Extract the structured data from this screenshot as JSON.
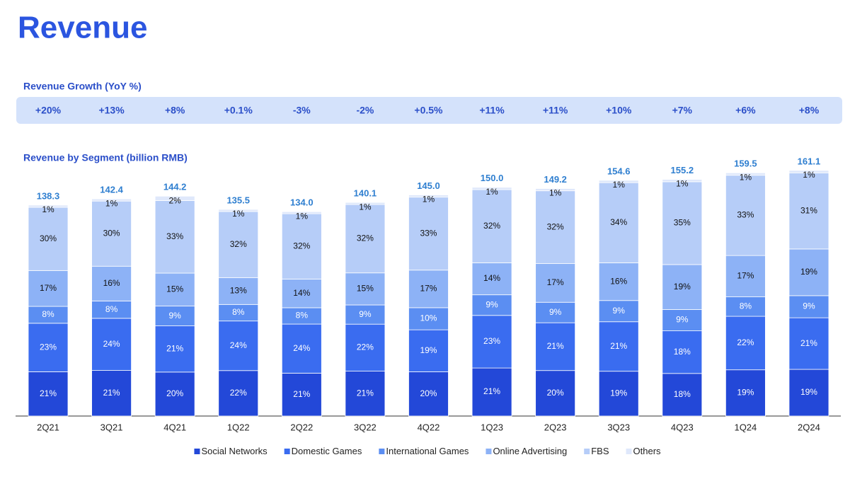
{
  "chart_data": {
    "type": "bar",
    "title": "Revenue",
    "growth": {
      "title": "Revenue Growth (YoY %)",
      "values": [
        20,
        13,
        8,
        0.1,
        -3,
        -2,
        0.5,
        11,
        11,
        10,
        7,
        6,
        8
      ],
      "value_labels": [
        "+20%",
        "+13%",
        "+8%",
        "+0.1%",
        "-3%",
        "-2%",
        "+0.5%",
        "+11%",
        "+11%",
        "+10%",
        "+7%",
        "+6%",
        "+8%"
      ]
    },
    "subtitle": "Revenue by Segment (billion RMB)",
    "categories": [
      "2Q21",
      "3Q21",
      "4Q21",
      "1Q22",
      "2Q22",
      "3Q22",
      "4Q22",
      "1Q23",
      "2Q23",
      "3Q23",
      "4Q23",
      "1Q24",
      "2Q24"
    ],
    "totals": {
      "values": [
        138.3,
        142.4,
        144.2,
        135.5,
        134.0,
        140.1,
        145.0,
        150.0,
        149.2,
        154.6,
        155.2,
        159.5,
        161.1
      ],
      "value_labels": [
        "138.3",
        "142.4",
        "144.2",
        "135.5",
        "134.0",
        "140.1",
        "145.0",
        "150.0",
        "149.2",
        "154.6",
        "155.2",
        "159.5",
        "161.1"
      ]
    },
    "series": [
      {
        "name": "Social Networks",
        "color": "#2348d8",
        "values": [
          21,
          21,
          20,
          22,
          21,
          21,
          20,
          21,
          20,
          19,
          18,
          19,
          19
        ],
        "value_labels": [
          "21%",
          "21%",
          "20%",
          "22%",
          "21%",
          "21%",
          "20%",
          "21%",
          "20%",
          "19%",
          "18%",
          "19%",
          "19%"
        ]
      },
      {
        "name": "Domestic Games",
        "color": "#3a6cf0",
        "values": [
          23,
          24,
          21,
          24,
          24,
          22,
          19,
          23,
          21,
          21,
          18,
          22,
          21
        ],
        "value_labels": [
          "23%",
          "24%",
          "21%",
          "24%",
          "24%",
          "22%",
          "19%",
          "23%",
          "21%",
          "21%",
          "18%",
          "22%",
          "21%"
        ]
      },
      {
        "name": "International Games",
        "color": "#5b8ef2",
        "values": [
          8,
          8,
          9,
          8,
          8,
          9,
          10,
          9,
          9,
          9,
          9,
          8,
          9
        ],
        "value_labels": [
          "8%",
          "8%",
          "9%",
          "8%",
          "8%",
          "9%",
          "10%",
          "9%",
          "9%",
          "9%",
          "9%",
          "8%",
          "9%"
        ]
      },
      {
        "name": "Online Advertising",
        "color": "#8db2f6",
        "values": [
          17,
          16,
          15,
          13,
          14,
          15,
          17,
          14,
          17,
          16,
          19,
          17,
          19
        ],
        "value_labels": [
          "17%",
          "16%",
          "15%",
          "13%",
          "14%",
          "15%",
          "17%",
          "14%",
          "17%",
          "16%",
          "19%",
          "17%",
          "19%"
        ]
      },
      {
        "name": "FBS",
        "color": "#b6cdf8",
        "values": [
          30,
          30,
          33,
          32,
          32,
          32,
          33,
          32,
          32,
          34,
          35,
          33,
          31
        ],
        "value_labels": [
          "30%",
          "30%",
          "33%",
          "32%",
          "32%",
          "32%",
          "33%",
          "32%",
          "32%",
          "34%",
          "35%",
          "33%",
          "31%"
        ]
      },
      {
        "name": "Others",
        "color": "#dfe8fb",
        "values": [
          1,
          1,
          2,
          1,
          1,
          1,
          1,
          1,
          1,
          1,
          1,
          1,
          1
        ],
        "value_labels": [
          "1%",
          "1%",
          "2%",
          "1%",
          "1%",
          "1%",
          "1%",
          "1%",
          "1%",
          "1%",
          "1%",
          "1%",
          "1%"
        ]
      }
    ]
  }
}
